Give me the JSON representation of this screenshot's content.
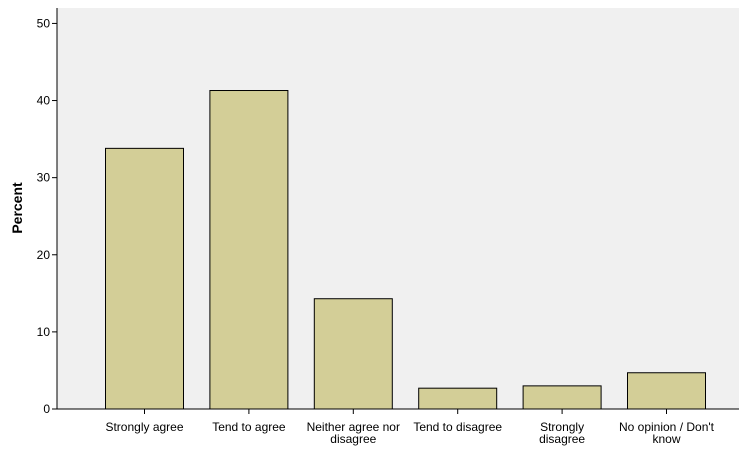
{
  "chart_data": {
    "type": "bar",
    "categories": [
      [
        "Strongly agree"
      ],
      [
        "Tend to agree"
      ],
      [
        "Neither agree nor",
        "disagree"
      ],
      [
        "Tend to disagree"
      ],
      [
        "Strongly",
        "disagree"
      ],
      [
        "No opinion / Don't",
        "know"
      ]
    ],
    "values": [
      33.8,
      41.3,
      14.3,
      2.7,
      3.0,
      4.7
    ],
    "ylabel": "Percent",
    "xlabel": "",
    "ylim": [
      0,
      52
    ],
    "yticks": [
      0,
      10,
      20,
      30,
      40,
      50
    ],
    "grid": false,
    "colors": {
      "plot_background": "#f0f0f0",
      "bar_fill": "#d3ce97",
      "bar_stroke": "#000000"
    }
  }
}
